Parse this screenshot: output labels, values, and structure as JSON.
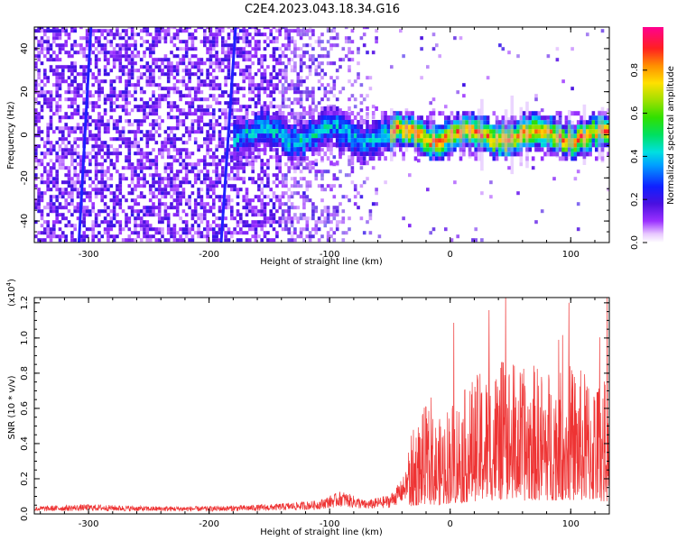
{
  "title": "C2E4.2023.043.18.34.G16",
  "chart_data": [
    {
      "type": "heatmap",
      "xlabel": "Height of straight line (km)",
      "ylabel": "Frequency (Hz)",
      "xlim": [
        -345,
        132
      ],
      "ylim": [
        -50,
        50
      ],
      "xticks": [
        -300,
        -200,
        -100,
        0,
        100
      ],
      "yticks": [
        -40,
        -20,
        0,
        20,
        40
      ],
      "colorbar": {
        "label": "Normalized spectral amplitude",
        "range": [
          0.0,
          1.0
        ],
        "ticks": [
          "0.0",
          "0.2",
          "0.4",
          "0.6",
          "0.8"
        ],
        "tick_values": [
          0.0,
          0.2,
          0.4,
          0.6,
          0.8
        ],
        "colormap": "rainbow"
      },
      "features": {
        "noise_region_x": [
          -345,
          -60
        ],
        "signal_band_center_hz": 0,
        "signal_band_start_x": -180,
        "strong_signal_start_x": -50,
        "streaks": [
          {
            "x_at_top": -298,
            "x_at_bottom": -308
          },
          {
            "x_at_top": -178,
            "x_at_bottom": -190
          }
        ]
      }
    },
    {
      "type": "line",
      "xlabel": "Height of straight line (km)",
      "ylabel": "SNR (10 * v/v)",
      "yscale_label": "(x10",
      "yscale_exp": "4",
      "yscale_close": ")",
      "xlim": [
        -345,
        132
      ],
      "ylim": [
        0,
        1.23
      ],
      "xticks": [
        -300,
        -200,
        -100,
        0,
        100
      ],
      "yticks": [
        "0.0",
        "0.2",
        "0.4",
        "0.6",
        "0.8",
        "1.0",
        "1.2"
      ],
      "ytick_values": [
        0.0,
        0.2,
        0.4,
        0.6,
        0.8,
        1.0,
        1.2
      ],
      "color": "#ee3333",
      "series_envelope": {
        "x": [
          -345,
          -300,
          -250,
          -200,
          -150,
          -110,
          -90,
          -70,
          -50,
          -40,
          -30,
          -20,
          -10,
          0,
          10,
          20,
          30,
          40,
          50,
          60,
          70,
          80,
          90,
          100,
          110,
          120,
          132
        ],
        "y": [
          0.04,
          0.05,
          0.04,
          0.04,
          0.05,
          0.07,
          0.12,
          0.07,
          0.1,
          0.18,
          0.3,
          0.38,
          0.32,
          0.4,
          0.42,
          0.48,
          0.5,
          0.52,
          0.55,
          0.5,
          0.52,
          0.5,
          0.52,
          0.52,
          0.5,
          0.48,
          0.46
        ]
      }
    }
  ]
}
